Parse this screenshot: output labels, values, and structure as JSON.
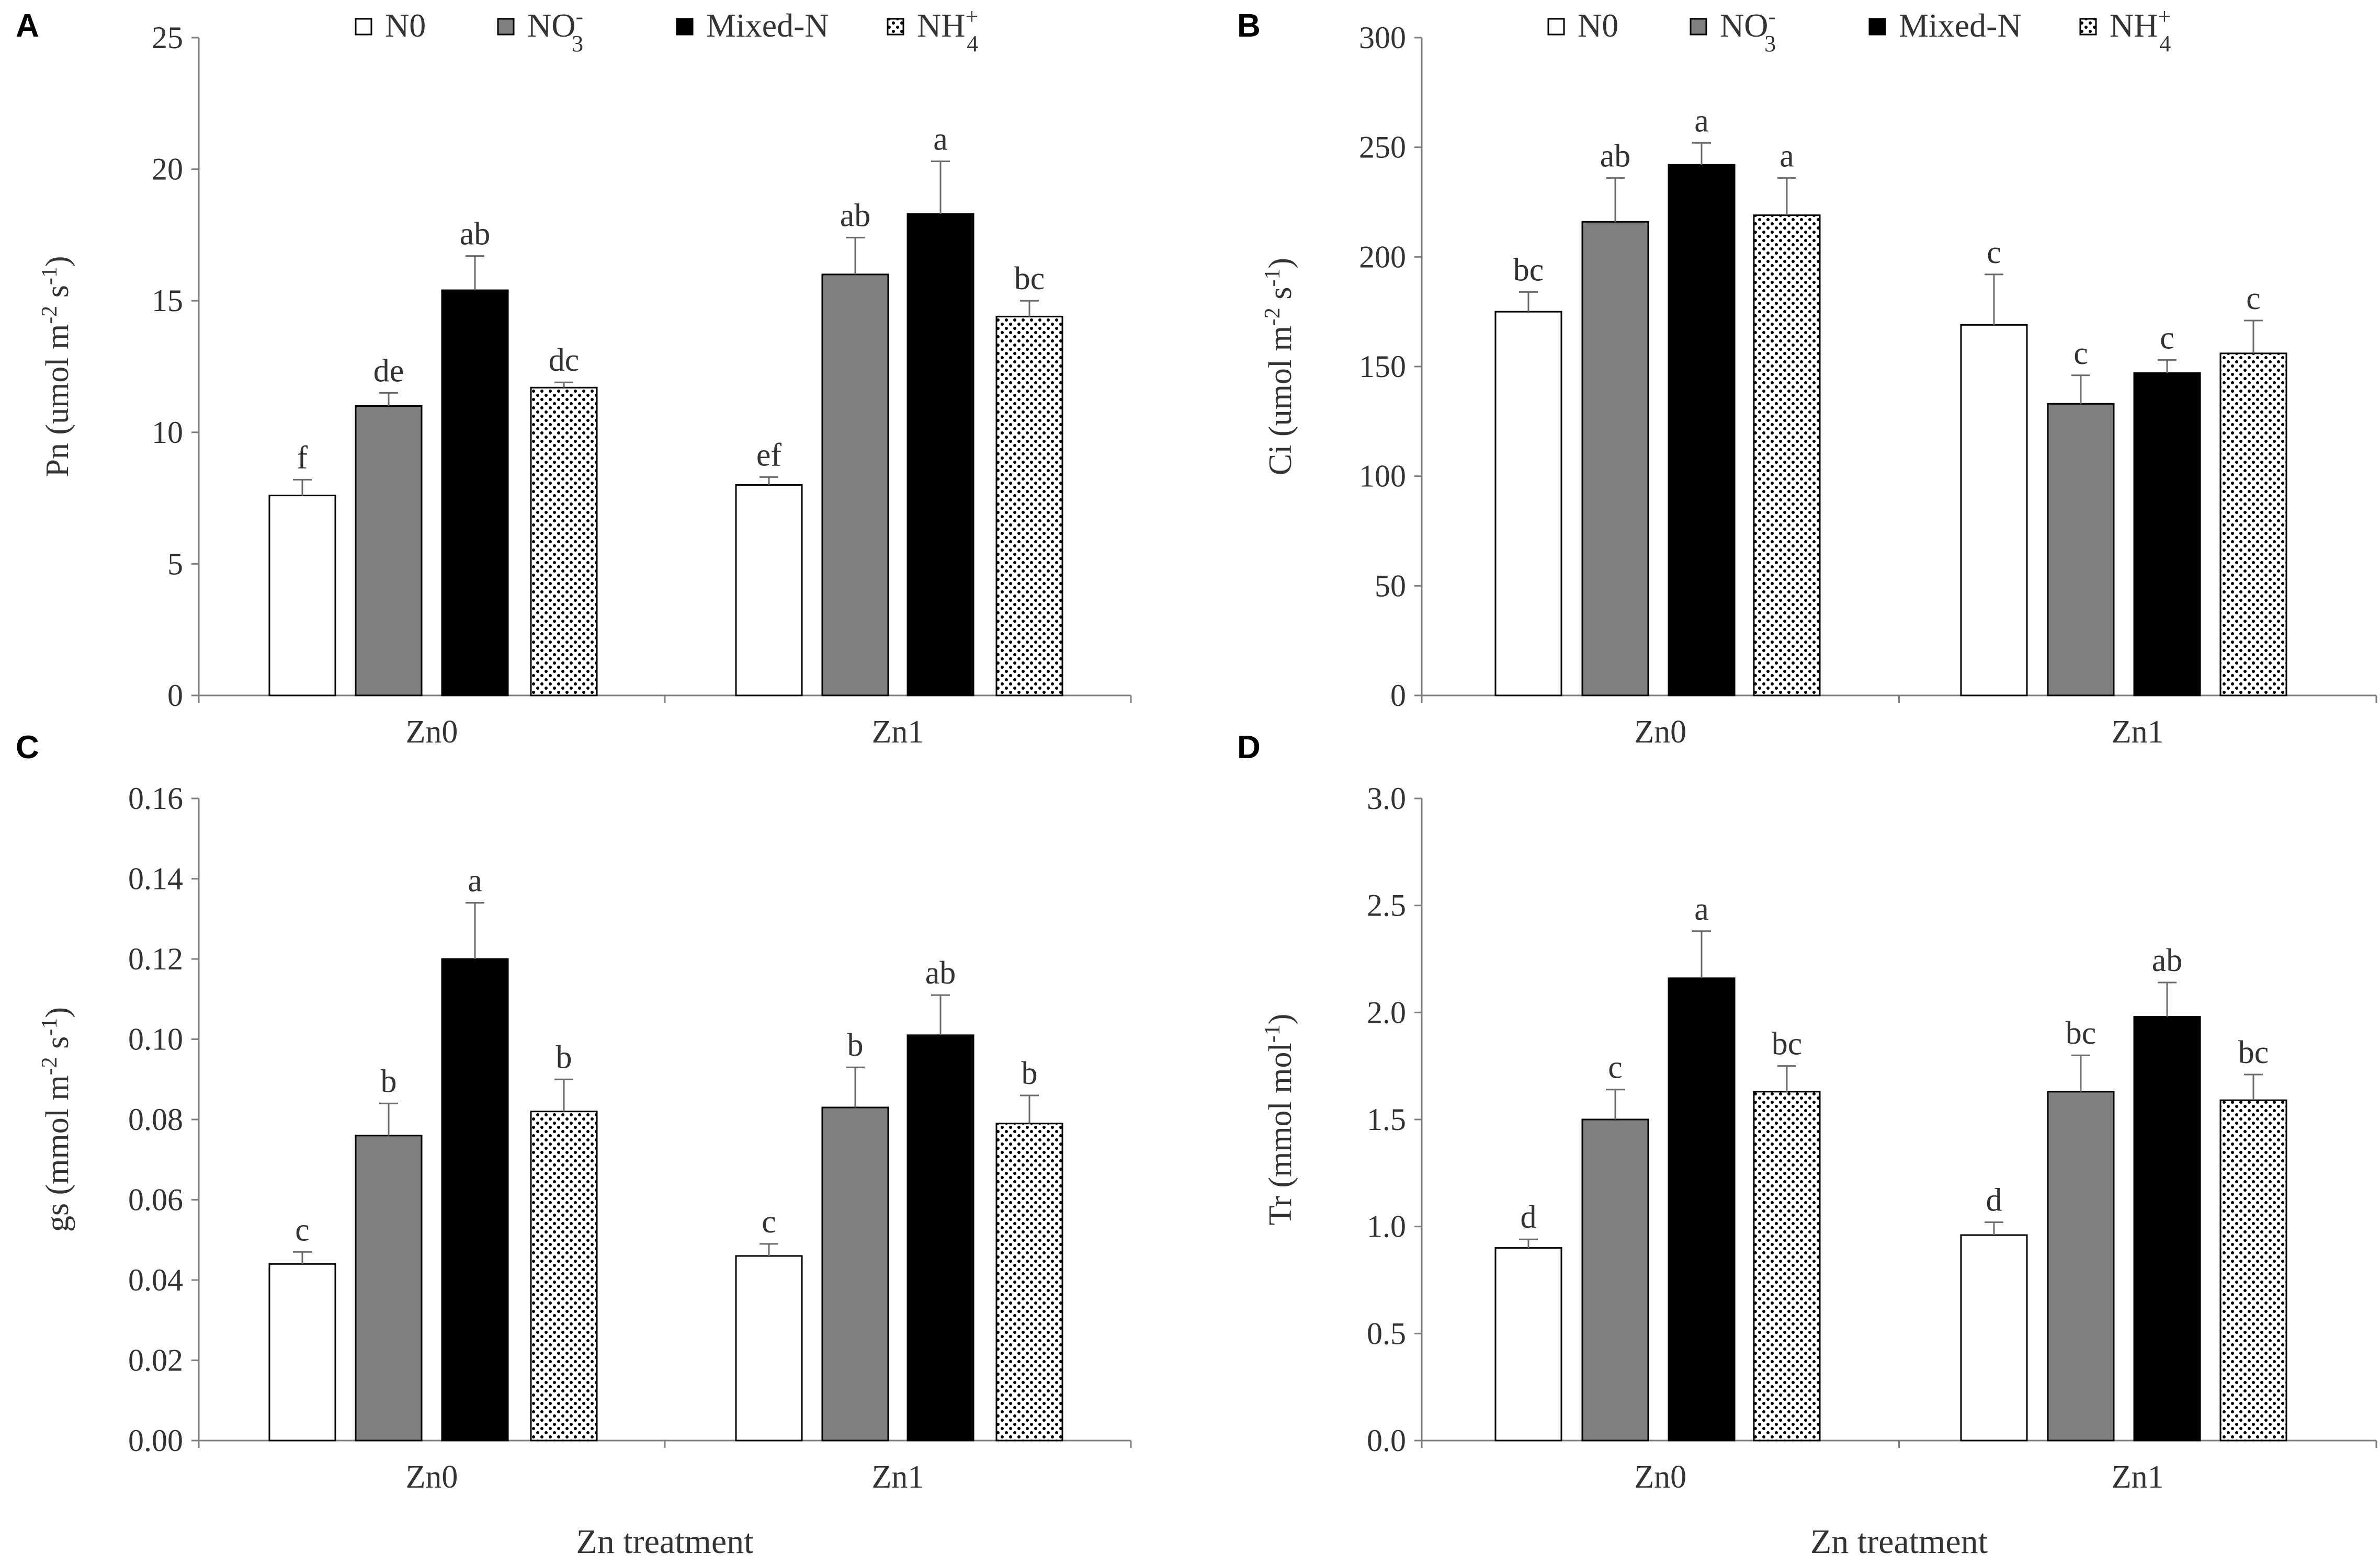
{
  "series_styles": [
    {
      "name": "N0",
      "fill": "#ffffff",
      "pattern": "none"
    },
    {
      "name": "NO3-",
      "fill": "#7f7f7f",
      "pattern": "none"
    },
    {
      "name": "Mixed-N",
      "fill": "#000000",
      "pattern": "none"
    },
    {
      "name": "NH4+",
      "fill": "#ffffff",
      "pattern": "dots"
    }
  ],
  "legend": [
    {
      "main": "N0",
      "sub": "",
      "sup": ""
    },
    {
      "main": "NO",
      "sub": "3",
      "sup": "-"
    },
    {
      "main": "Mixed-N",
      "sub": "",
      "sup": ""
    },
    {
      "main": "NH",
      "sub": "4",
      "sup": "+"
    }
  ],
  "chart_data": [
    {
      "panel": "A",
      "type": "bar",
      "categories": [
        "Zn0",
        "Zn1"
      ],
      "ylabel_main": "Pn (umol  m",
      "ylabel_sup1": "-2",
      "ylabel_mid": " s",
      "ylabel_sup2": "-1",
      "ylabel_end": ")",
      "xlabel": "",
      "ylim": [
        0,
        25
      ],
      "yticks": [
        "0",
        "5",
        "10",
        "15",
        "20",
        "25"
      ],
      "yticks_values": [
        0,
        5,
        10,
        15,
        20,
        25
      ],
      "series": [
        {
          "name": "N0",
          "values": [
            7.6,
            8.0
          ],
          "errors": [
            0.6,
            0.3
          ],
          "letters": [
            "f",
            "ef"
          ]
        },
        {
          "name": "NO3-",
          "values": [
            11.0,
            16.0
          ],
          "errors": [
            0.5,
            1.4
          ],
          "letters": [
            "de",
            "ab"
          ]
        },
        {
          "name": "Mixed-N",
          "values": [
            15.4,
            18.3
          ],
          "errors": [
            1.3,
            2.0
          ],
          "letters": [
            "ab",
            "a"
          ]
        },
        {
          "name": "NH4+",
          "values": [
            11.7,
            14.4
          ],
          "errors": [
            0.2,
            0.6
          ],
          "letters": [
            "dc",
            "bc"
          ]
        }
      ]
    },
    {
      "panel": "B",
      "type": "bar",
      "categories": [
        "Zn0",
        "Zn1"
      ],
      "ylabel_main": "Ci (umol  m",
      "ylabel_sup1": "-2",
      "ylabel_mid": " s",
      "ylabel_sup2": "-1",
      "ylabel_end": ")",
      "xlabel": "",
      "ylim": [
        0,
        300
      ],
      "yticks": [
        "0",
        "50",
        "100",
        "150",
        "200",
        "250",
        "300"
      ],
      "yticks_values": [
        0,
        50,
        100,
        150,
        200,
        250,
        300
      ],
      "series": [
        {
          "name": "N0",
          "values": [
            175,
            169
          ],
          "errors": [
            9,
            23
          ],
          "letters": [
            "bc",
            "c"
          ]
        },
        {
          "name": "NO3-",
          "values": [
            216,
            133
          ],
          "errors": [
            20,
            13
          ],
          "letters": [
            "ab",
            "c"
          ]
        },
        {
          "name": "Mixed-N",
          "values": [
            242,
            147
          ],
          "errors": [
            10,
            6
          ],
          "letters": [
            "a",
            "c"
          ]
        },
        {
          "name": "NH4+",
          "values": [
            219,
            156
          ],
          "errors": [
            17,
            15
          ],
          "letters": [
            "a",
            "c"
          ]
        }
      ]
    },
    {
      "panel": "C",
      "type": "bar",
      "categories": [
        "Zn0",
        "Zn1"
      ],
      "ylabel_main": "gs (mmol m",
      "ylabel_sup1": "-2",
      "ylabel_mid": " s",
      "ylabel_sup2": "-1",
      "ylabel_end": ")",
      "xlabel": "Zn treatment",
      "ylim": [
        0,
        0.16
      ],
      "yticks": [
        "0.00",
        "0.02",
        "0.04",
        "0.06",
        "0.08",
        "0.10",
        "0.12",
        "0.14",
        "0.16"
      ],
      "yticks_values": [
        0,
        0.02,
        0.04,
        0.06,
        0.08,
        0.1,
        0.12,
        0.14,
        0.16
      ],
      "series": [
        {
          "name": "N0",
          "values": [
            0.044,
            0.046
          ],
          "errors": [
            0.003,
            0.003
          ],
          "letters": [
            "c",
            "c"
          ]
        },
        {
          "name": "NO3-",
          "values": [
            0.076,
            0.083
          ],
          "errors": [
            0.008,
            0.01
          ],
          "letters": [
            "b",
            "b"
          ]
        },
        {
          "name": "Mixed-N",
          "values": [
            0.12,
            0.101
          ],
          "errors": [
            0.014,
            0.01
          ],
          "letters": [
            "a",
            "ab"
          ]
        },
        {
          "name": "NH4+",
          "values": [
            0.082,
            0.079
          ],
          "errors": [
            0.008,
            0.007
          ],
          "letters": [
            "b",
            "b"
          ]
        }
      ]
    },
    {
      "panel": "D",
      "type": "bar",
      "categories": [
        "Zn0",
        "Zn1"
      ],
      "ylabel_main": "Tr (mmol mol",
      "ylabel_sup1": "-1",
      "ylabel_mid": "",
      "ylabel_sup2": "",
      "ylabel_end": ")",
      "xlabel": "Zn treatment",
      "ylim": [
        0,
        3.0
      ],
      "yticks": [
        "0.0",
        "0.5",
        "1.0",
        "1.5",
        "2.0",
        "2.5",
        "3.0"
      ],
      "yticks_values": [
        0,
        0.5,
        1.0,
        1.5,
        2.0,
        2.5,
        3.0
      ],
      "series": [
        {
          "name": "N0",
          "values": [
            0.9,
            0.96
          ],
          "errors": [
            0.04,
            0.06
          ],
          "letters": [
            "d",
            "d"
          ]
        },
        {
          "name": "NO3-",
          "values": [
            1.5,
            1.63
          ],
          "errors": [
            0.14,
            0.17
          ],
          "letters": [
            "c",
            "bc"
          ]
        },
        {
          "name": "Mixed-N",
          "values": [
            2.16,
            1.98
          ],
          "errors": [
            0.22,
            0.16
          ],
          "letters": [
            "a",
            "ab"
          ]
        },
        {
          "name": "NH4+",
          "values": [
            1.63,
            1.59
          ],
          "errors": [
            0.12,
            0.12
          ],
          "letters": [
            "bc",
            "bc"
          ]
        }
      ]
    }
  ]
}
